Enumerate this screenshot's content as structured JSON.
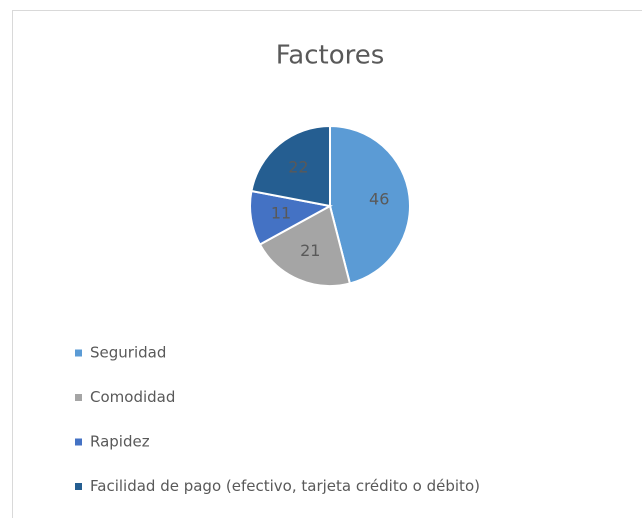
{
  "chart_data": {
    "type": "pie",
    "title": "Factores",
    "categories": [
      "Seguridad",
      "Comodidad",
      "Rapidez",
      "Facilidad de pago (efectivo, tarjeta crédito o débito)"
    ],
    "values": [
      46,
      21,
      11,
      22
    ],
    "colors": [
      "#5b9bd5",
      "#a5a5a5",
      "#4472c4",
      "#255e91"
    ],
    "legend": "bottom-left"
  }
}
